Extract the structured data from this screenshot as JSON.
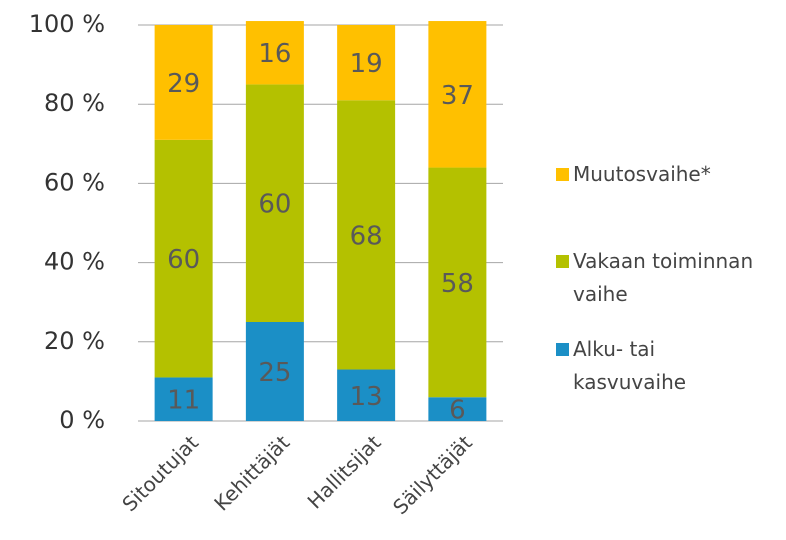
{
  "chart_data": {
    "type": "stacked_bar",
    "categories": [
      "Sitoutujat",
      "Kehittäjät",
      "Hallitsijat",
      "Säilyttäjät"
    ],
    "series": [
      {
        "name": "Alku- tai kasvuvaihe",
        "color": "#1b8fc6",
        "values": [
          11,
          25,
          13,
          6
        ]
      },
      {
        "name": "Vakaan toiminnan vaihe",
        "color": "#b4c100",
        "values": [
          60,
          60,
          68,
          58
        ]
      },
      {
        "name": "Muutosvaihe*",
        "color": "#ffc000",
        "values": [
          29,
          16,
          19,
          37
        ]
      }
    ],
    "ylim": [
      0,
      100
    ],
    "yticks": [
      {
        "value": 0,
        "label": "0 %"
      },
      {
        "value": 20,
        "label": "20 %"
      },
      {
        "value": 40,
        "label": "40 %"
      },
      {
        "value": 60,
        "label": "60 %"
      },
      {
        "value": 80,
        "label": "80 %"
      },
      {
        "value": 100,
        "label": "100 %"
      }
    ],
    "grid": true,
    "legend": "right"
  }
}
